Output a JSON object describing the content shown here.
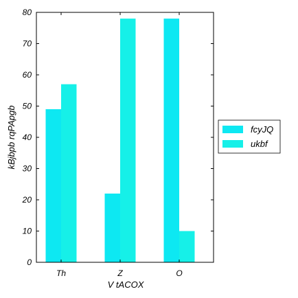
{
  "chart_data": {
    "type": "bar",
    "categories": [
      "Th",
      "Z",
      "O"
    ],
    "series": [
      {
        "name": "fcyJQ",
        "values": [
          49,
          22,
          78
        ],
        "color": "#0DE8F2"
      },
      {
        "name": "ukbf",
        "values": [
          57,
          78,
          10
        ],
        "color": "#16F0E8"
      }
    ],
    "xlabel": "V  tACOX",
    "ylabel": "kBjbpb rqPApgb",
    "ylim": [
      0,
      80
    ],
    "yticks": [
      0,
      10,
      20,
      30,
      40,
      50,
      60,
      70,
      80
    ],
    "grid": false,
    "legend_position": "right"
  }
}
